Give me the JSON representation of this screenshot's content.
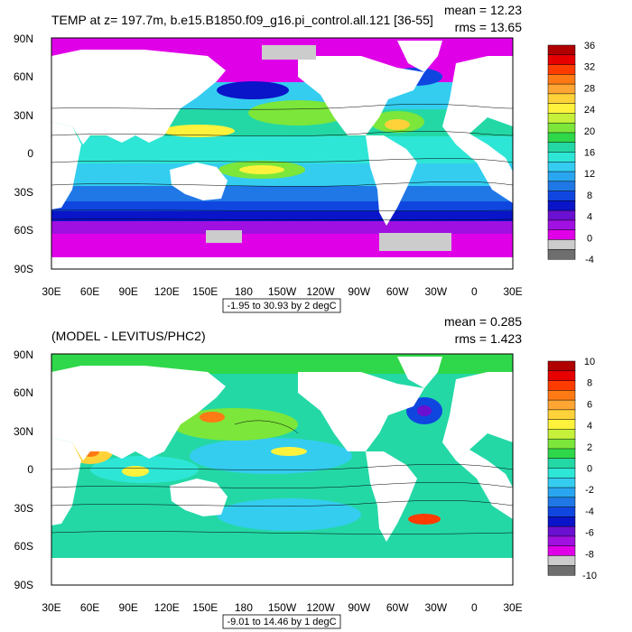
{
  "panels": [
    {
      "title": "TEMP at z= 197.7m, b.e15.B1850.f09_g16.pi_control.all.121 [36-55]",
      "mean": "mean = 12.23",
      "rms": "rms = 13.65",
      "range_label": "-1.95 to 30.93 by 2 degC",
      "lat_labels": [
        "90N",
        "60N",
        "30N",
        "0",
        "30S",
        "60S",
        "90S"
      ],
      "lon_labels": [
        "30E",
        "60E",
        "90E",
        "120E",
        "150E",
        "180",
        "150W",
        "120W",
        "90W",
        "60W",
        "30W",
        "0",
        "30E"
      ],
      "colorbar": {
        "labels": [
          "36",
          "32",
          "28",
          "24",
          "20",
          "16",
          "12",
          "8",
          "4",
          "0",
          "-4"
        ],
        "colors": [
          "#B00000",
          "#E60000",
          "#FF3C00",
          "#FF7A14",
          "#FFA533",
          "#FFD23A",
          "#FFF23C",
          "#C6F03A",
          "#7CE63A",
          "#2FD84A",
          "#24D8A6",
          "#2EE6D6",
          "#34CDF0",
          "#2AA6F0",
          "#2078E6",
          "#1046E0",
          "#0A14C8",
          "#6A10D0",
          "#A010E0",
          "#E000E8",
          "#CCCCCC",
          "#6E6E6E"
        ]
      }
    },
    {
      "title": "(MODEL - LEVITUS/PHC2)",
      "mean": "mean = 0.285",
      "rms": "rms = 1.423",
      "range_label": "-9.01 to 14.46 by 1 degC",
      "lat_labels": [
        "90N",
        "60N",
        "30N",
        "0",
        "30S",
        "60S",
        "90S"
      ],
      "lon_labels": [
        "30E",
        "60E",
        "90E",
        "120E",
        "150E",
        "180",
        "150W",
        "120W",
        "90W",
        "60W",
        "30W",
        "0",
        "30E"
      ],
      "colorbar": {
        "labels": [
          "10",
          "8",
          "6",
          "4",
          "2",
          "0",
          "-2",
          "-4",
          "-6",
          "-8",
          "-10"
        ],
        "colors": [
          "#B00000",
          "#E60000",
          "#FF3C00",
          "#FF7A14",
          "#FFA533",
          "#FFD23A",
          "#FFF23C",
          "#C6F03A",
          "#7CE63A",
          "#2FD84A",
          "#24D8A6",
          "#2EE6D6",
          "#34CDF0",
          "#2AA6F0",
          "#2078E6",
          "#1046E0",
          "#0A14C8",
          "#6A10D0",
          "#A010E0",
          "#E000E8",
          "#CCCCCC",
          "#6E6E6E"
        ]
      }
    }
  ]
}
